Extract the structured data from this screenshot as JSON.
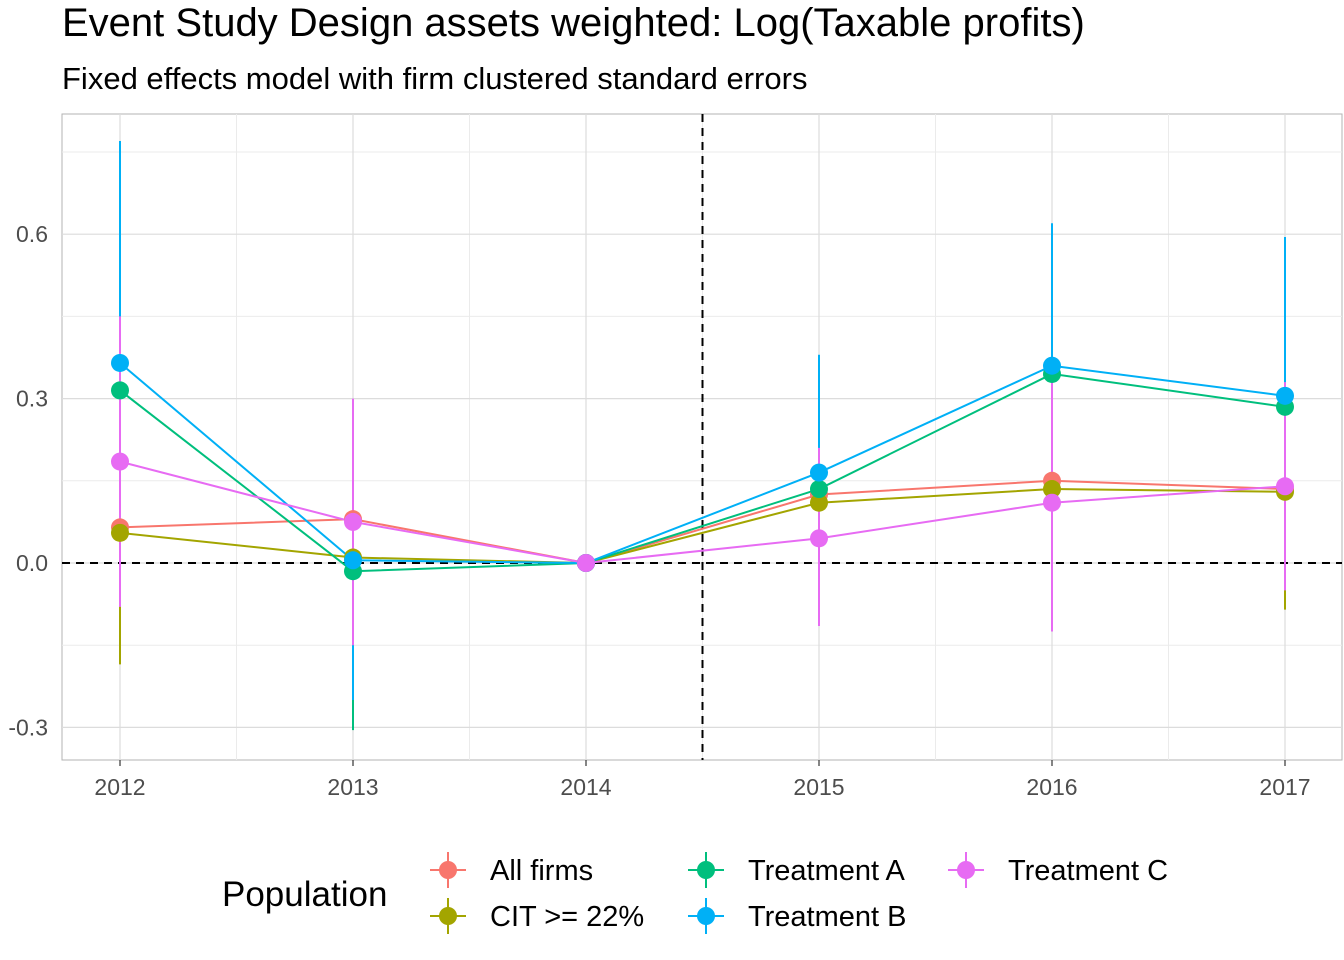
{
  "chart_data": {
    "type": "line",
    "title": "Event Study Design assets weighted: Log(Taxable profits)",
    "subtitle": "Fixed effects model with firm clustered standard errors",
    "xlabel": "",
    "ylabel": "",
    "categories": [
      "2012",
      "2013",
      "2014",
      "2015",
      "2016",
      "2017"
    ],
    "y_ticks": [
      -0.3,
      0.0,
      0.3,
      0.6
    ],
    "y_tick_labels": [
      "-0.3",
      "0.0",
      "0.3",
      "0.6"
    ],
    "ylim": [
      -0.36,
      0.82
    ],
    "reference_lines": {
      "horizontal_y": 0.0,
      "vertical_between": [
        "2014",
        "2015"
      ],
      "style": "dashed"
    },
    "grid": true,
    "legend": {
      "title": "Population",
      "position": "bottom"
    },
    "series": [
      {
        "name": "All firms",
        "color": "#F8766D",
        "values": [
          0.065,
          0.08,
          0.0,
          0.125,
          0.15,
          0.135
        ],
        "lower": [
          -0.15,
          -0.1,
          0.0,
          -0.05,
          -0.04,
          -0.06
        ],
        "upper": [
          0.28,
          0.26,
          0.0,
          0.3,
          0.34,
          0.33
        ]
      },
      {
        "name": "CIT >= 22%",
        "color": "#A3A500",
        "values": [
          0.055,
          0.01,
          0.0,
          0.11,
          0.135,
          0.13
        ],
        "lower": [
          -0.185,
          -0.24,
          0.0,
          -0.07,
          -0.075,
          -0.085
        ],
        "upper": [
          0.3,
          0.26,
          0.0,
          0.29,
          0.34,
          0.345
        ]
      },
      {
        "name": "Treatment A",
        "color": "#00BF7D",
        "values": [
          0.315,
          -0.015,
          0.0,
          0.135,
          0.345,
          0.285
        ],
        "lower": [
          0.15,
          -0.305,
          0.0,
          -0.02,
          0.12,
          0.05
        ],
        "upper": [
          0.48,
          0.27,
          0.0,
          0.29,
          0.57,
          0.52
        ]
      },
      {
        "name": "Treatment B",
        "color": "#00B0F6",
        "values": [
          0.365,
          0.005,
          0.0,
          0.165,
          0.36,
          0.305
        ],
        "lower": [
          -0.04,
          -0.25,
          0.0,
          -0.05,
          0.1,
          0.02
        ],
        "upper": [
          0.77,
          0.26,
          0.0,
          0.38,
          0.62,
          0.595
        ]
      },
      {
        "name": "Treatment C",
        "color": "#E76BF3",
        "values": [
          0.185,
          0.075,
          0.0,
          0.045,
          0.11,
          0.14
        ],
        "lower": [
          -0.08,
          -0.15,
          0.0,
          -0.115,
          -0.125,
          -0.05
        ],
        "upper": [
          0.45,
          0.3,
          0.0,
          0.21,
          0.35,
          0.33
        ]
      }
    ]
  }
}
